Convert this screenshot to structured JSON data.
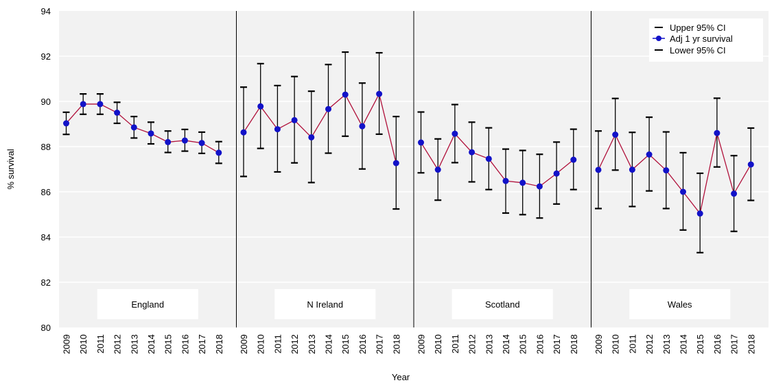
{
  "chart_data": {
    "type": "line",
    "xlabel": "Year",
    "ylabel": "% survival",
    "ylim": [
      80,
      94
    ],
    "y_ticks": [
      80,
      82,
      84,
      86,
      88,
      90,
      92,
      94
    ],
    "grid": true,
    "legend_placement": "top-right",
    "legend": [
      "Upper 95% CI",
      "Adj 1 yr survival",
      "Lower 95% CI"
    ],
    "colors": {
      "line": "#b0103a",
      "point": "#1212c8",
      "panel_bg": "#f2f2f2",
      "grid": "#ffffff"
    },
    "panels": [
      {
        "name": "England",
        "years": [
          "2009",
          "2010",
          "2011",
          "2012",
          "2013",
          "2014",
          "2015",
          "2016",
          "2017",
          "2018"
        ],
        "adj": [
          89.03,
          89.88,
          89.88,
          89.5,
          88.85,
          88.58,
          88.2,
          88.27,
          88.16,
          87.73
        ],
        "upper": [
          89.52,
          90.33,
          90.33,
          89.96,
          89.33,
          89.08,
          88.69,
          88.76,
          88.64,
          88.22
        ],
        "lower": [
          88.54,
          89.43,
          89.43,
          89.03,
          88.38,
          88.12,
          87.74,
          87.8,
          87.7,
          87.26
        ]
      },
      {
        "name": "N Ireland",
        "years": [
          "2009",
          "2010",
          "2011",
          "2012",
          "2013",
          "2014",
          "2015",
          "2016",
          "2017",
          "2018"
        ],
        "adj": [
          88.63,
          89.78,
          88.77,
          89.17,
          88.41,
          89.66,
          90.3,
          88.9,
          90.33,
          87.27
        ],
        "upper": [
          90.63,
          91.67,
          90.7,
          91.1,
          90.45,
          91.63,
          92.18,
          90.81,
          92.15,
          89.33
        ],
        "lower": [
          86.68,
          87.92,
          86.88,
          87.28,
          86.41,
          87.71,
          88.46,
          87.01,
          88.55,
          85.24
        ]
      },
      {
        "name": "Scotland",
        "years": [
          "2009",
          "2010",
          "2011",
          "2012",
          "2013",
          "2014",
          "2015",
          "2016",
          "2017",
          "2018"
        ],
        "adj": [
          88.18,
          86.98,
          88.57,
          87.75,
          87.46,
          86.48,
          86.4,
          86.24,
          86.81,
          87.42
        ],
        "upper": [
          89.53,
          88.34,
          89.86,
          89.08,
          88.83,
          87.89,
          87.83,
          87.66,
          88.2,
          88.77
        ],
        "lower": [
          86.84,
          85.63,
          87.29,
          86.44,
          86.1,
          85.06,
          84.99,
          84.84,
          85.46,
          86.1
        ]
      },
      {
        "name": "Wales",
        "years": [
          "2009",
          "2010",
          "2011",
          "2012",
          "2013",
          "2014",
          "2015",
          "2016",
          "2017",
          "2018"
        ],
        "adj": [
          86.97,
          88.53,
          86.98,
          87.65,
          86.95,
          86.0,
          85.04,
          88.6,
          85.92,
          87.21
        ],
        "upper": [
          88.69,
          90.13,
          88.63,
          89.3,
          88.65,
          87.73,
          86.82,
          90.14,
          87.6,
          88.82
        ],
        "lower": [
          85.26,
          86.96,
          85.35,
          86.04,
          85.26,
          84.31,
          83.31,
          87.1,
          84.25,
          85.62
        ]
      }
    ]
  }
}
